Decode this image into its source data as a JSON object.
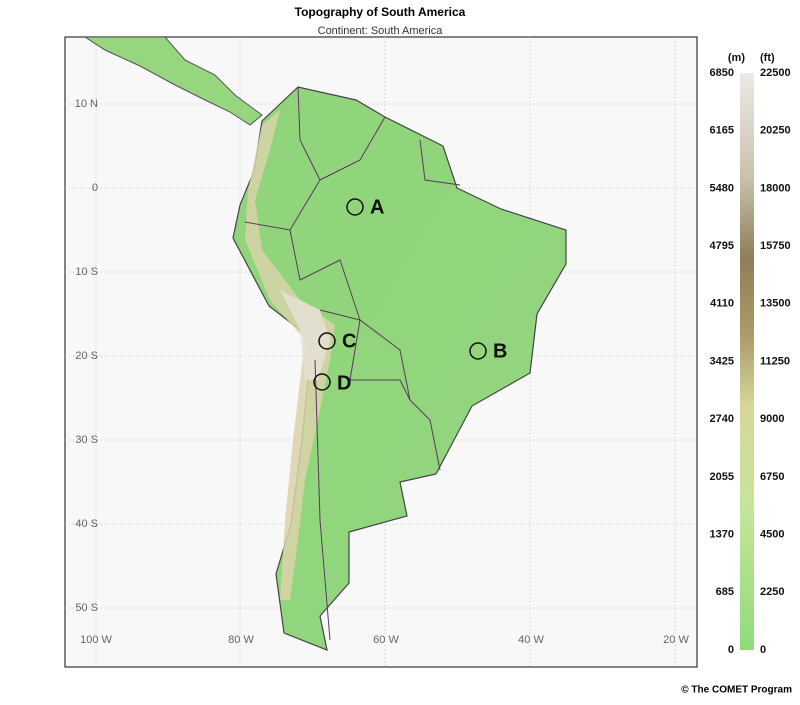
{
  "header": {
    "title": "Topography of South America",
    "subtitle": "Continent: South America"
  },
  "map": {
    "lat_labels": [
      "10 N",
      "0",
      "10 S",
      "20 S",
      "30 S",
      "40 S",
      "50 S"
    ],
    "lon_labels": [
      "100 W",
      "80 W",
      "60 W",
      "40 W",
      "20 W"
    ],
    "markers": [
      "A",
      "B",
      "C",
      "D"
    ]
  },
  "colorbar": {
    "unit_left": "(m)",
    "unit_right": "(ft)",
    "meters": [
      "6850",
      "6165",
      "5480",
      "4795",
      "4110",
      "3425",
      "2740",
      "2055",
      "1370",
      "685",
      "0"
    ],
    "feet": [
      "22500",
      "20250",
      "18000",
      "15750",
      "13500",
      "11250",
      "9000",
      "6750",
      "4500",
      "2250",
      "0"
    ]
  },
  "footer": {
    "credit": "© The COMET Program"
  }
}
